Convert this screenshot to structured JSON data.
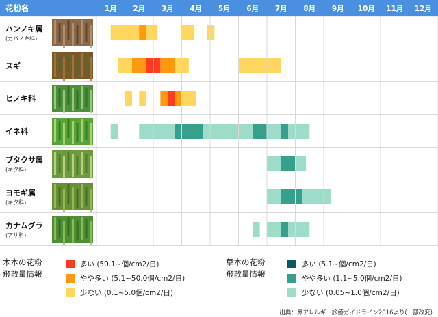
{
  "chart_data": {
    "type": "heatmap",
    "header_label": "花粉名",
    "months": [
      "1月",
      "2月",
      "3月",
      "4月",
      "5月",
      "6月",
      "7月",
      "8月",
      "9月",
      "10月",
      "11月",
      "12月"
    ],
    "categories": [
      {
        "name": "ハンノキ属",
        "sub": "(カバノキ科)",
        "image": "alder-catkins",
        "group": "tree"
      },
      {
        "name": "スギ",
        "sub": "",
        "image": "cedar-flowers",
        "group": "tree"
      },
      {
        "name": "ヒノキ科",
        "sub": "",
        "image": "cypress-cones",
        "group": "tree"
      },
      {
        "name": "イネ科",
        "sub": "",
        "image": "grass-spikes",
        "group": "grass"
      },
      {
        "name": "ブタクサ属",
        "sub": "(キク科)",
        "image": "ragweed",
        "group": "grass"
      },
      {
        "name": "ヨモギ属",
        "sub": "(キク科)",
        "image": "mugwort",
        "group": "grass"
      },
      {
        "name": "カナムグラ",
        "sub": "(アサ科)",
        "image": "japanese-hop",
        "group": "grass"
      }
    ],
    "segments": [
      {
        "row": 0,
        "from": 1.0,
        "to": 4.3,
        "level": "tree_low"
      },
      {
        "row": 0,
        "from": 3.0,
        "to": 3.5,
        "level": "tree_mid"
      },
      {
        "row": 0,
        "from": 6.0,
        "to": 6.9,
        "level": "tree_low"
      },
      {
        "row": 0,
        "from": 7.8,
        "to": 8.3,
        "level": "tree_low"
      },
      {
        "row": 1,
        "from": 1.5,
        "to": 2.5,
        "level": "tree_low"
      },
      {
        "row": 1,
        "from": 2.5,
        "to": 3.5,
        "level": "tree_mid"
      },
      {
        "row": 1,
        "from": 3.5,
        "to": 4.5,
        "level": "tree_high"
      },
      {
        "row": 1,
        "from": 4.5,
        "to": 5.5,
        "level": "tree_mid"
      },
      {
        "row": 1,
        "from": 5.5,
        "to": 6.5,
        "level": "tree_low"
      },
      {
        "row": 1,
        "from": 10.0,
        "to": 13.0,
        "level": "tree_low"
      },
      {
        "row": 2,
        "from": 2.0,
        "to": 2.5,
        "level": "tree_low"
      },
      {
        "row": 2,
        "from": 3.0,
        "to": 3.5,
        "level": "tree_low"
      },
      {
        "row": 2,
        "from": 4.5,
        "to": 5.0,
        "level": "tree_mid"
      },
      {
        "row": 2,
        "from": 5.0,
        "to": 5.5,
        "level": "tree_high"
      },
      {
        "row": 2,
        "from": 5.5,
        "to": 6.0,
        "level": "tree_mid"
      },
      {
        "row": 2,
        "from": 6.0,
        "to": 7.0,
        "level": "tree_low"
      },
      {
        "row": 3,
        "from": 1.0,
        "to": 1.5,
        "level": "grass_low"
      },
      {
        "row": 3,
        "from": 3.0,
        "to": 5.5,
        "level": "grass_low"
      },
      {
        "row": 3,
        "from": 5.5,
        "to": 7.5,
        "level": "grass_mid"
      },
      {
        "row": 3,
        "from": 7.5,
        "to": 11.0,
        "level": "grass_low"
      },
      {
        "row": 3,
        "from": 11.0,
        "to": 12.0,
        "level": "grass_mid"
      },
      {
        "row": 3,
        "from": 12.0,
        "to": 13.0,
        "level": "grass_low"
      },
      {
        "row": 3,
        "from": 13.0,
        "to": 13.5,
        "level": "grass_mid"
      },
      {
        "row": 3,
        "from": 13.5,
        "to": 15.0,
        "level": "grass_low"
      },
      {
        "row": 4,
        "from": 12.0,
        "to": 13.0,
        "level": "grass_low"
      },
      {
        "row": 4,
        "from": 13.0,
        "to": 14.0,
        "level": "grass_mid"
      },
      {
        "row": 4,
        "from": 14.0,
        "to": 14.75,
        "level": "grass_low"
      },
      {
        "row": 5,
        "from": 12.0,
        "to": 13.0,
        "level": "grass_low"
      },
      {
        "row": 5,
        "from": 13.0,
        "to": 14.5,
        "level": "grass_mid"
      },
      {
        "row": 5,
        "from": 14.5,
        "to": 16.5,
        "level": "grass_low"
      },
      {
        "row": 6,
        "from": 11.0,
        "to": 11.5,
        "level": "grass_low"
      },
      {
        "row": 6,
        "from": 12.0,
        "to": 13.0,
        "level": "grass_low"
      },
      {
        "row": 6,
        "from": 13.0,
        "to": 13.5,
        "level": "grass_mid"
      },
      {
        "row": 6,
        "from": 13.5,
        "to": 15.0,
        "level": "grass_low"
      }
    ],
    "segments_unit": "half-month index, 0 = Jan 1st half start ... 24 = Dec end",
    "colors": {
      "header": "#4a8fe0",
      "tree_high": "#ff3b22",
      "tree_mid": "#ff9910",
      "tree_low": "#ffd65e",
      "grass_high": "#0b5a5f",
      "grass_mid": "#36a08c",
      "grass_low": "#9cdcc8"
    }
  },
  "legend": {
    "tree": {
      "title_line1": "木本の花粉",
      "title_line2": "飛散量情報",
      "items": [
        {
          "level": "tree_high",
          "label": "多い (50.1~個/cm2/日)"
        },
        {
          "level": "tree_mid",
          "label": "やや多い (5.1~50.0個/cm2/日)"
        },
        {
          "level": "tree_low",
          "label": "少ない (0.1~5.0個/cm2/日)"
        }
      ]
    },
    "grass": {
      "title_line1": "草本の花粉",
      "title_line2": "飛散量情報",
      "items": [
        {
          "level": "grass_high",
          "label": "多い (5.1~個/cm2/日)"
        },
        {
          "level": "grass_mid",
          "label": "やや多い (1.1~5.0個/cm2/日)"
        },
        {
          "level": "grass_low",
          "label": "少ない (0.05~1.0個/cm2/日)"
        }
      ]
    }
  },
  "source": "出典：鼻アレルギー診療ガイドライン2016より(一部改変)"
}
